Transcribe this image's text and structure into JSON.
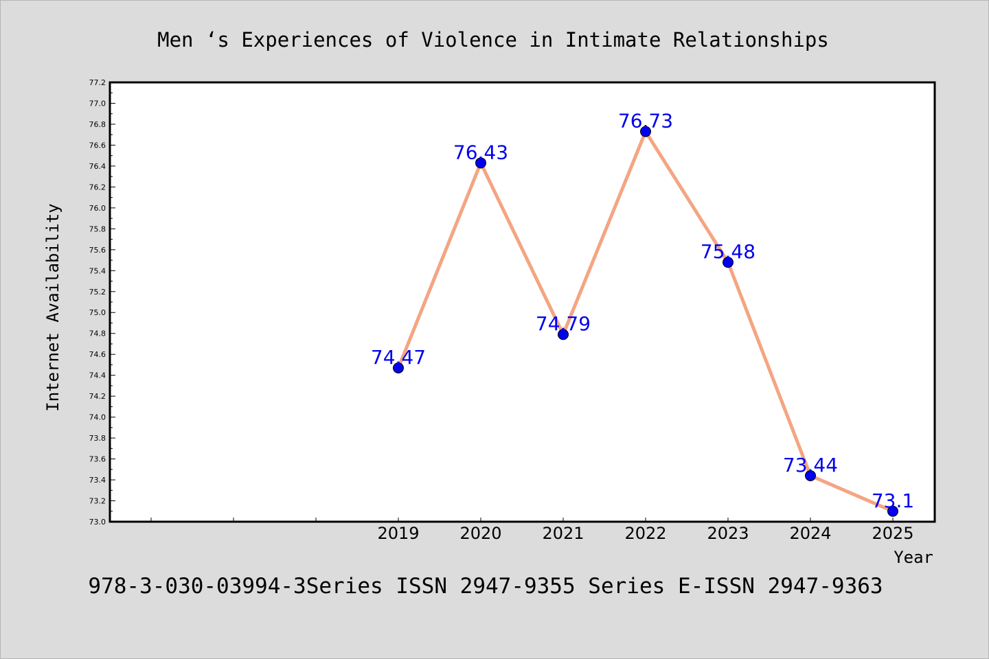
{
  "chart_data": {
    "type": "line",
    "title": "Men ‘s Experiences of Violence in Intimate Relationships",
    "xlabel": "Year",
    "ylabel": "Internet Availability",
    "footer": "978-3-030-03994-3Series ISSN 2947-9355 Series E-ISSN 2947-9363",
    "categories": [
      "2019",
      "2020",
      "2021",
      "2022",
      "2023",
      "2024",
      "2025"
    ],
    "series": [
      {
        "values": [
          74.47,
          76.43,
          74.79,
          76.73,
          75.48,
          73.44,
          73.1
        ]
      }
    ],
    "data_labels": [
      "74.47",
      "76.43",
      "74.79",
      "76.73",
      "75.48",
      "73.44",
      "73.1"
    ],
    "ylim": [
      73.0,
      77.2
    ],
    "yticks": [
      "73.0",
      "73.2",
      "73.4",
      "73.6",
      "73.8",
      "74.0",
      "74.2",
      "74.4",
      "74.6",
      "74.8",
      "75.0",
      "75.2",
      "75.4",
      "75.6",
      "75.8",
      "76.0",
      "76.2",
      "76.4",
      "76.6",
      "76.8",
      "77.0",
      "77.2"
    ],
    "grid": false,
    "legend": "none",
    "colors": {
      "background": "#dcdcdc",
      "plot_background": "#ffffff",
      "line": "#f4a582",
      "marker": "#0000ee",
      "label": "#0000ee",
      "text": "#000000"
    }
  }
}
